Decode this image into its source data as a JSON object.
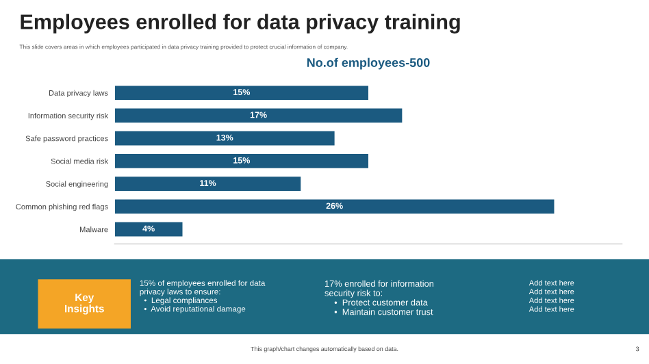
{
  "chart_data": {
    "type": "bar",
    "orientation": "horizontal",
    "title": "Employees enrolled for data privacy training",
    "subtitle": "This slide covers areas in which employees participated in data privacy training provided to protect crucial information of company.",
    "xlabel": "No.of employees-500",
    "categories": [
      "Data privacy laws",
      "Information security risk",
      "Safe password practices",
      "Social media risk",
      "Social engineering",
      "Common phishing red flags",
      "Malware"
    ],
    "values": [
      15,
      17,
      13,
      15,
      11,
      26,
      4
    ],
    "value_labels": [
      "15%",
      "17%",
      "13%",
      "15%",
      "11%",
      "26%",
      "4%"
    ],
    "color": "#1b5a80",
    "xlim": [
      0,
      30
    ],
    "annotations": [
      "Key Insights",
      "15% of employees enrolled for data\nprivacy laws to ensure:\n  •  Legal compliances\n  •  Avoid reputational damage",
      "17% enrolled for information\nsecurity risk to:\n    •  Protect customer data\n    •  Maintain customer trust",
      "Add text here\nAdd text here\nAdd text here\nAdd text here",
      "This graph/chart changes automatically based on data.",
      "3"
    ]
  }
}
